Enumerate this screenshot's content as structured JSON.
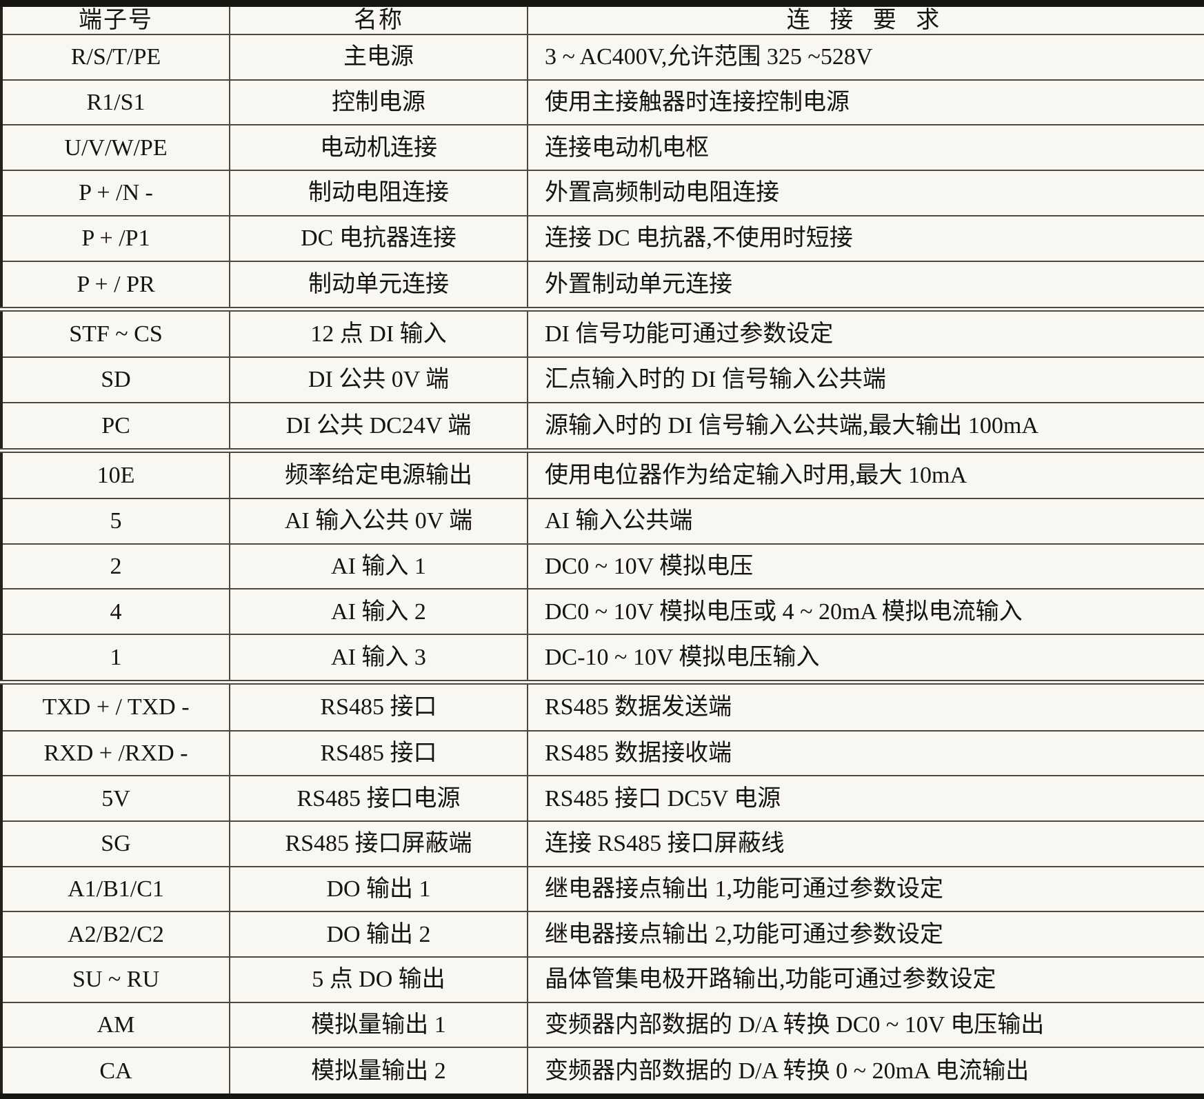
{
  "table": {
    "headers": [
      "端子号",
      "名称",
      "连 接 要 求"
    ],
    "sections": [
      {
        "rows": [
          {
            "terminal": "R/S/T/PE",
            "name": "主电源",
            "requirement": "3 ~ AC400V,允许范围 325 ~528V"
          },
          {
            "terminal": "R1/S1",
            "name": "控制电源",
            "requirement": "使用主接触器时连接控制电源"
          },
          {
            "terminal": "U/V/W/PE",
            "name": "电动机连接",
            "requirement": "连接电动机电枢"
          },
          {
            "terminal": "P + /N -",
            "name": "制动电阻连接",
            "requirement": "外置高频制动电阻连接"
          },
          {
            "terminal": "P + /P1",
            "name": "DC 电抗器连接",
            "requirement": "连接 DC 电抗器,不使用时短接"
          },
          {
            "terminal": "P + / PR",
            "name": "制动单元连接",
            "requirement": "外置制动单元连接"
          }
        ]
      },
      {
        "rows": [
          {
            "terminal": "STF ~ CS",
            "name": "12 点 DI 输入",
            "requirement": "DI 信号功能可通过参数设定"
          },
          {
            "terminal": "SD",
            "name": "DI 公共 0V 端",
            "requirement": "汇点输入时的 DI 信号输入公共端"
          },
          {
            "terminal": "PC",
            "name": "DI 公共 DC24V 端",
            "requirement": "源输入时的 DI 信号输入公共端,最大输出 100mA"
          }
        ]
      },
      {
        "rows": [
          {
            "terminal": "10E",
            "name": "频率给定电源输出",
            "requirement": "使用电位器作为给定输入时用,最大 10mA"
          },
          {
            "terminal": "5",
            "name": "AI 输入公共 0V 端",
            "requirement": "AI 输入公共端"
          },
          {
            "terminal": "2",
            "name": "AI 输入 1",
            "requirement": "DC0 ~ 10V 模拟电压"
          },
          {
            "terminal": "4",
            "name": "AI 输入 2",
            "requirement": "DC0 ~ 10V 模拟电压或 4 ~ 20mA 模拟电流输入"
          },
          {
            "terminal": "1",
            "name": "AI 输入 3",
            "requirement": "DC-10 ~ 10V 模拟电压输入"
          }
        ]
      },
      {
        "rows": [
          {
            "terminal": "TXD + / TXD -",
            "name": "RS485 接口",
            "requirement": "RS485 数据发送端"
          },
          {
            "terminal": "RXD + /RXD -",
            "name": "RS485 接口",
            "requirement": "RS485 数据接收端"
          },
          {
            "terminal": "5V",
            "name": "RS485 接口电源",
            "requirement": "RS485 接口 DC5V 电源"
          },
          {
            "terminal": "SG",
            "name": "RS485 接口屏蔽端",
            "requirement": "连接 RS485 接口屏蔽线"
          },
          {
            "terminal": "A1/B1/C1",
            "name": "DO 输出 1",
            "requirement": "继电器接点输出 1,功能可通过参数设定"
          },
          {
            "terminal": "A2/B2/C2",
            "name": "DO 输出 2",
            "requirement": "继电器接点输出 2,功能可通过参数设定"
          },
          {
            "terminal": "SU ~ RU",
            "name": "5 点 DO 输出",
            "requirement": "晶体管集电极开路输出,功能可通过参数设定"
          },
          {
            "terminal": "AM",
            "name": "模拟量输出 1",
            "requirement": "变频器内部数据的 D/A 转换 DC0 ~ 10V 电压输出"
          },
          {
            "terminal": "CA",
            "name": "模拟量输出 2",
            "requirement": "变频器内部数据的 D/A 转换 0 ~ 20mA 电流输出"
          }
        ]
      }
    ]
  },
  "colors": {
    "background": "#f9f7f1",
    "inner_line": "#4b4939",
    "outer_line": "#191712",
    "text": "#16140f"
  }
}
